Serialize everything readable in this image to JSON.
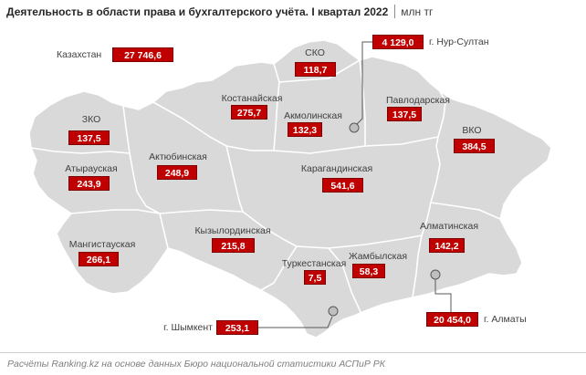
{
  "title": "Деятельность в области права и бухгалтерского учёта. I квартал 2022",
  "unit": "млн тг",
  "country": {
    "name": "Казахстан",
    "value": "27 746,6"
  },
  "regions": [
    {
      "name": "СКО",
      "value": "118,7"
    },
    {
      "name": "Павлодарская",
      "value": "137,5"
    },
    {
      "name": "Костанайская",
      "value": "275,7"
    },
    {
      "name": "Акмолинская",
      "value": "132,3"
    },
    {
      "name": "ЗКО",
      "value": "137,5"
    },
    {
      "name": "ВКО",
      "value": "384,5"
    },
    {
      "name": "Атырауская",
      "value": "243,9"
    },
    {
      "name": "Актюбинская",
      "value": "248,9"
    },
    {
      "name": "Карагандинская",
      "value": "541,6"
    },
    {
      "name": "Алматинская",
      "value": "142,2"
    },
    {
      "name": "Кызылординская",
      "value": "215,8"
    },
    {
      "name": "Мангистауская",
      "value": "266,1"
    },
    {
      "name": "Туркестанская",
      "value": "7,5"
    },
    {
      "name": "Жамбылская",
      "value": "58,3"
    }
  ],
  "cities": [
    {
      "name": "г. Нур-Султан",
      "value": "4 129,0"
    },
    {
      "name": "г. Алматы",
      "value": "20 454,0"
    },
    {
      "name": "г. Шымкент",
      "value": "253,1"
    }
  ],
  "source": "Расчёты Ranking.kz на основе данных Бюро национальной статистики АСПиР РК",
  "colors": {
    "map_fill": "#d9d9d9",
    "region_border": "#ffffff",
    "value_box": "#c00000",
    "value_box_border": "#7f0000",
    "value_text": "#ffffff",
    "label_text": "#404040",
    "leader_line": "#595959",
    "city_marker": "#bfbfbf"
  }
}
